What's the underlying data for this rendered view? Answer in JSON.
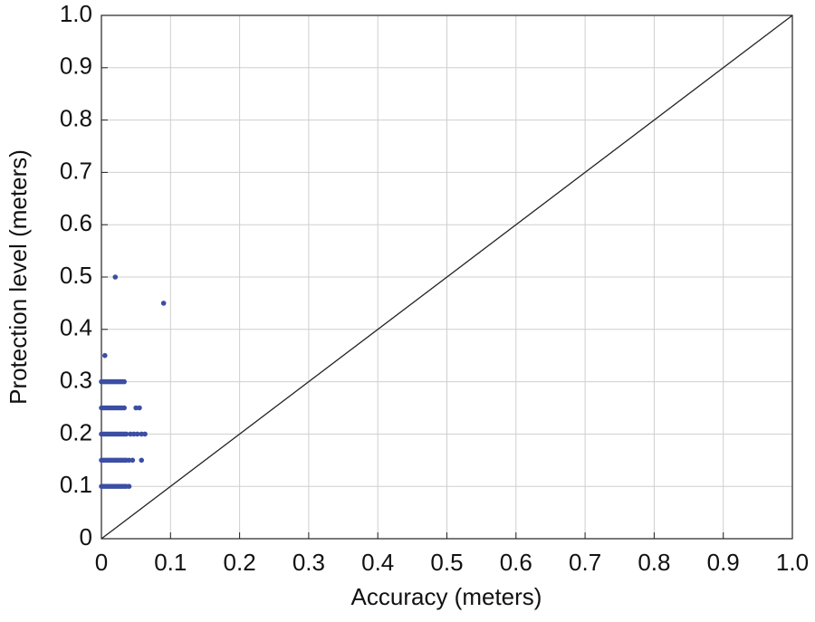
{
  "chart_data": {
    "type": "scatter",
    "xlabel": "Accuracy (meters)",
    "ylabel": "Protection level (meters)",
    "color": "#3b4ea3",
    "grid": true,
    "xlim": [
      0,
      1
    ],
    "ylim": [
      0,
      1
    ],
    "xticks": [
      0,
      0.1,
      0.2,
      0.3,
      0.4,
      0.5,
      0.6,
      0.7,
      0.8,
      0.9,
      {
        "value": 1,
        "label": "1.0"
      }
    ],
    "yticks": [
      0,
      0.1,
      0.2,
      0.3,
      0.4,
      0.5,
      0.6,
      0.7,
      0.8,
      0.9,
      {
        "value": 1,
        "label": "1.0"
      }
    ],
    "x": [
      0,
      0.003,
      0.006,
      0.009,
      0.012,
      0.015,
      0.018,
      0.021,
      0.024,
      0.027,
      0.03,
      0.033,
      0.036,
      0.04,
      0,
      0.003,
      0.006,
      0.009,
      0.012,
      0.015,
      0.018,
      0.021,
      0.024,
      0.027,
      0.03,
      0.033,
      0.036,
      0.04,
      0.045,
      0.058,
      0,
      0.003,
      0.006,
      0.009,
      0.012,
      0.015,
      0.018,
      0.021,
      0.024,
      0.027,
      0.03,
      0.033,
      0.036,
      0.042,
      0.047,
      0.052,
      0.058,
      0.063,
      0,
      0.003,
      0.006,
      0.009,
      0.012,
      0.015,
      0.018,
      0.021,
      0.024,
      0.027,
      0.03,
      0.033,
      0.05,
      0.055,
      0,
      0.003,
      0.006,
      0.009,
      0.012,
      0.015,
      0.018,
      0.021,
      0.024,
      0.027,
      0.03,
      0.033,
      0.005,
      0.09,
      0.02
    ],
    "values": [
      0.1,
      0.1,
      0.1,
      0.1,
      0.1,
      0.1,
      0.1,
      0.1,
      0.1,
      0.1,
      0.1,
      0.1,
      0.1,
      0.1,
      0.15,
      0.15,
      0.15,
      0.15,
      0.15,
      0.15,
      0.15,
      0.15,
      0.15,
      0.15,
      0.15,
      0.15,
      0.15,
      0.15,
      0.15,
      0.15,
      0.2,
      0.2,
      0.2,
      0.2,
      0.2,
      0.2,
      0.2,
      0.2,
      0.2,
      0.2,
      0.2,
      0.2,
      0.2,
      0.2,
      0.2,
      0.2,
      0.2,
      0.2,
      0.25,
      0.25,
      0.25,
      0.25,
      0.25,
      0.25,
      0.25,
      0.25,
      0.25,
      0.25,
      0.25,
      0.25,
      0.25,
      0.25,
      0.3,
      0.3,
      0.3,
      0.3,
      0.3,
      0.3,
      0.3,
      0.3,
      0.3,
      0.3,
      0.3,
      0.3,
      0.35,
      0.45,
      0.5
    ]
  }
}
